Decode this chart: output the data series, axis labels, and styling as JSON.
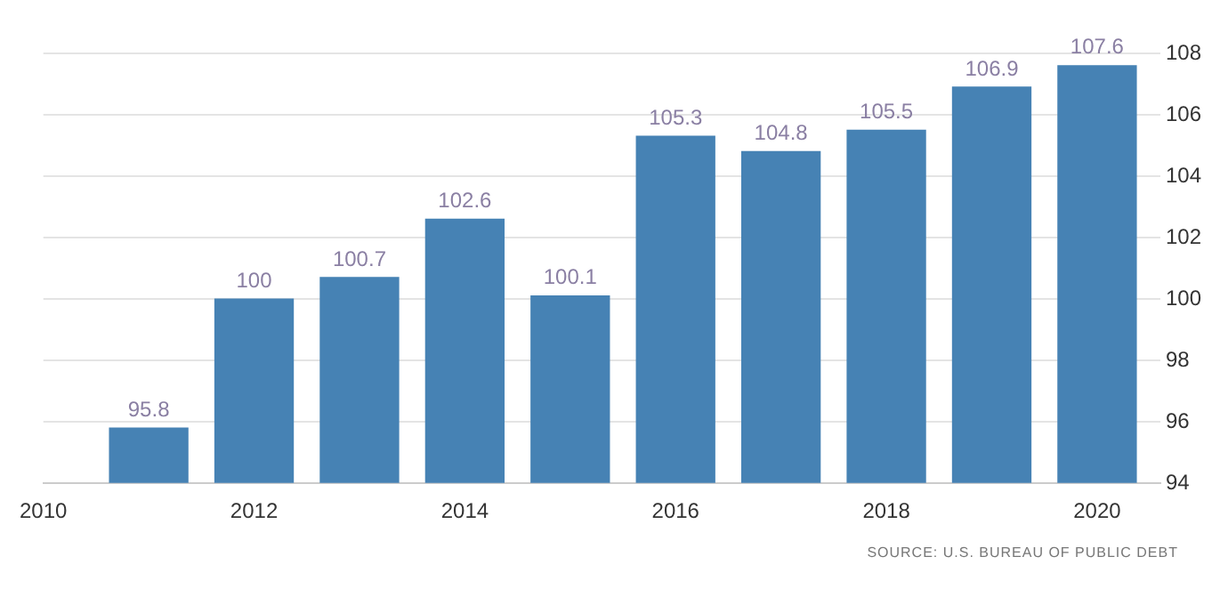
{
  "chart_data": {
    "type": "bar",
    "x": [
      2011,
      2012,
      2013,
      2014,
      2015,
      2016,
      2017,
      2018,
      2019,
      2020
    ],
    "values": [
      95.8,
      100,
      100.7,
      102.6,
      100.1,
      105.3,
      104.8,
      105.5,
      106.9,
      107.6
    ],
    "color": "#4682b4",
    "data_labels": true,
    "xlim": [
      2010,
      2020.6
    ],
    "xticks": [
      2010,
      2012,
      2014,
      2016,
      2018,
      2020
    ],
    "ylim": [
      94,
      108
    ],
    "yticks": [
      94,
      96,
      98,
      100,
      102,
      104,
      106,
      108
    ],
    "grid": "y",
    "legend": false,
    "annotations": [
      "SOURCE: U.S. BUREAU OF PUBLIC DEBT"
    ]
  }
}
